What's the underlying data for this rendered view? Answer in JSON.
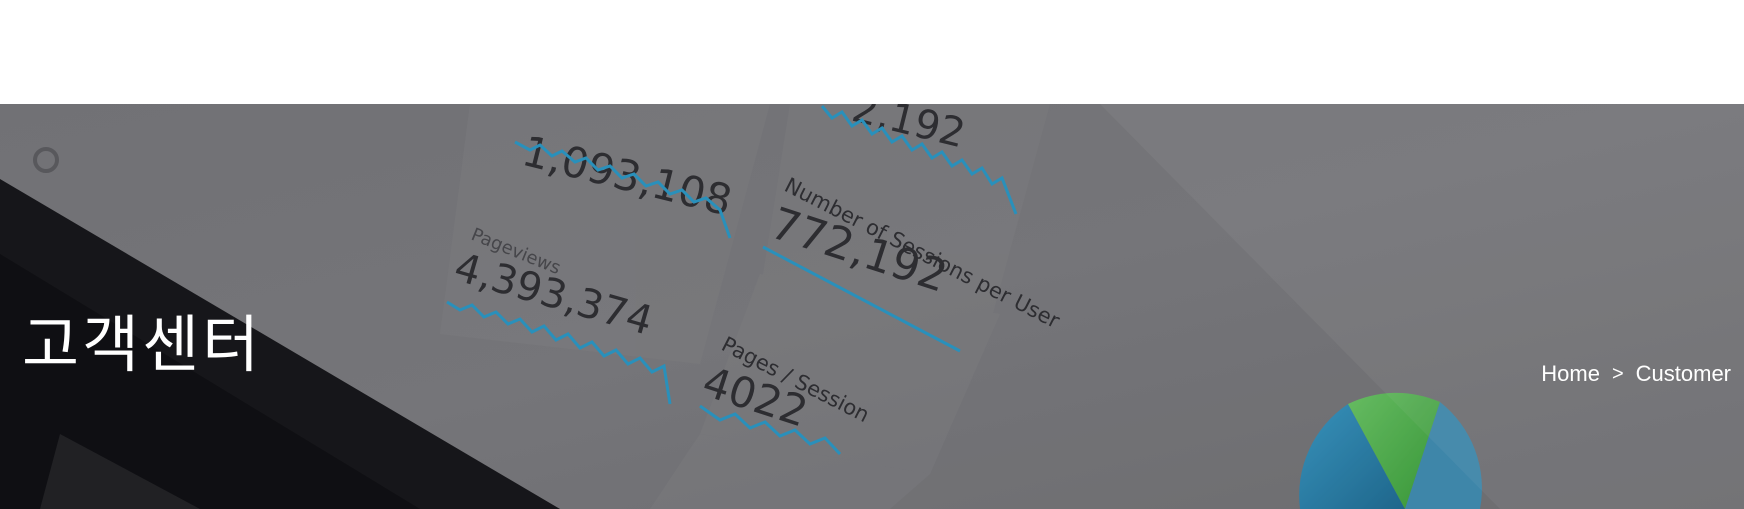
{
  "header": {},
  "hero": {
    "title": "고객센터",
    "background_texts": {
      "metric_top_partial": "1,093,108",
      "metric_top_right_partial": "2,192",
      "pageviews_label": "Pageviews",
      "pageviews_value": "4,393,374",
      "sessions_per_user_label": "Number of Sessions per User",
      "sessions_per_user_value": "772,192",
      "pages_session_label": "Pages / Session",
      "pages_session_value": "4022"
    }
  },
  "breadcrumb": {
    "home": "Home",
    "separator": ">",
    "current": "Customer"
  },
  "colors": {
    "overlay": "#6f6f72",
    "title_text": "#ffffff",
    "chart_line": "#2a9fd0",
    "pie_green": "#4fc24a",
    "pie_blue": "#2c8fc0"
  }
}
